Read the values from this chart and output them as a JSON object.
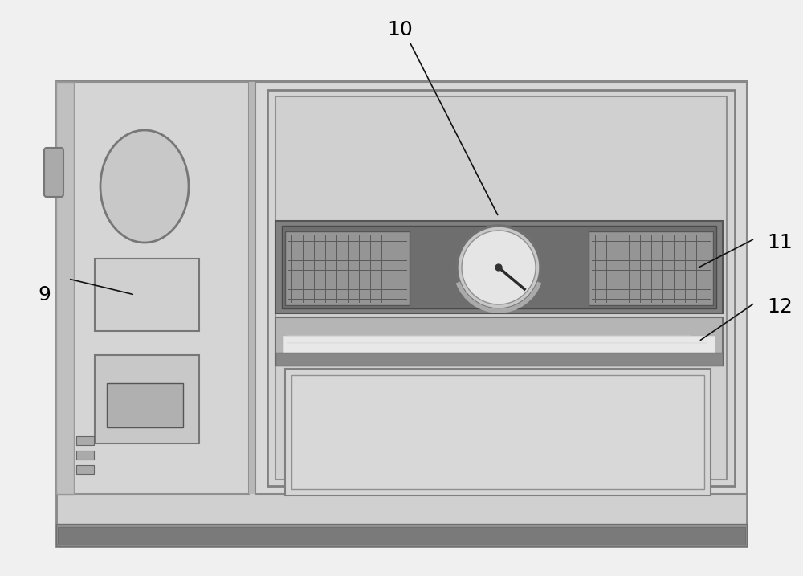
{
  "figsize": [
    10.0,
    7.17
  ],
  "bg_color": "#f0f0f0",
  "body_outer_color": "#d0d0d0",
  "body_outer_edge": "#888888",
  "left_panel_color": "#d5d5d5",
  "left_panel_edge": "#909090",
  "narrow_strip_color": "#c0c0c0",
  "right_door_color": "#d8d8d8",
  "right_door_edge": "#888888",
  "door_inner1_color": "#d2d2d2",
  "door_inner2_color": "#cecece",
  "ctrl_bar_color": "#808080",
  "ctrl_bar_inner_color": "#6e6e6e",
  "vent_color": "#959595",
  "vent_grid_color": "#5a5a5a",
  "gauge_outer_color": "#d0d0d0",
  "gauge_inner_color": "#e5e5e5",
  "tray_color": "#b5b5b5",
  "tray_white": "#e8e8e8",
  "tray_dark": "#888888",
  "chamber_color": "#d5d5d5",
  "base_color": "#909090",
  "base_dark": "#707070",
  "hinge_color": "#aaaaaa",
  "oval_color": "#c8c8c8",
  "btn1_color": "#d0d0d0",
  "btn2_color": "#c8c8c8",
  "screen_color": "#b0b0b0",
  "annotation_color": "#111111"
}
